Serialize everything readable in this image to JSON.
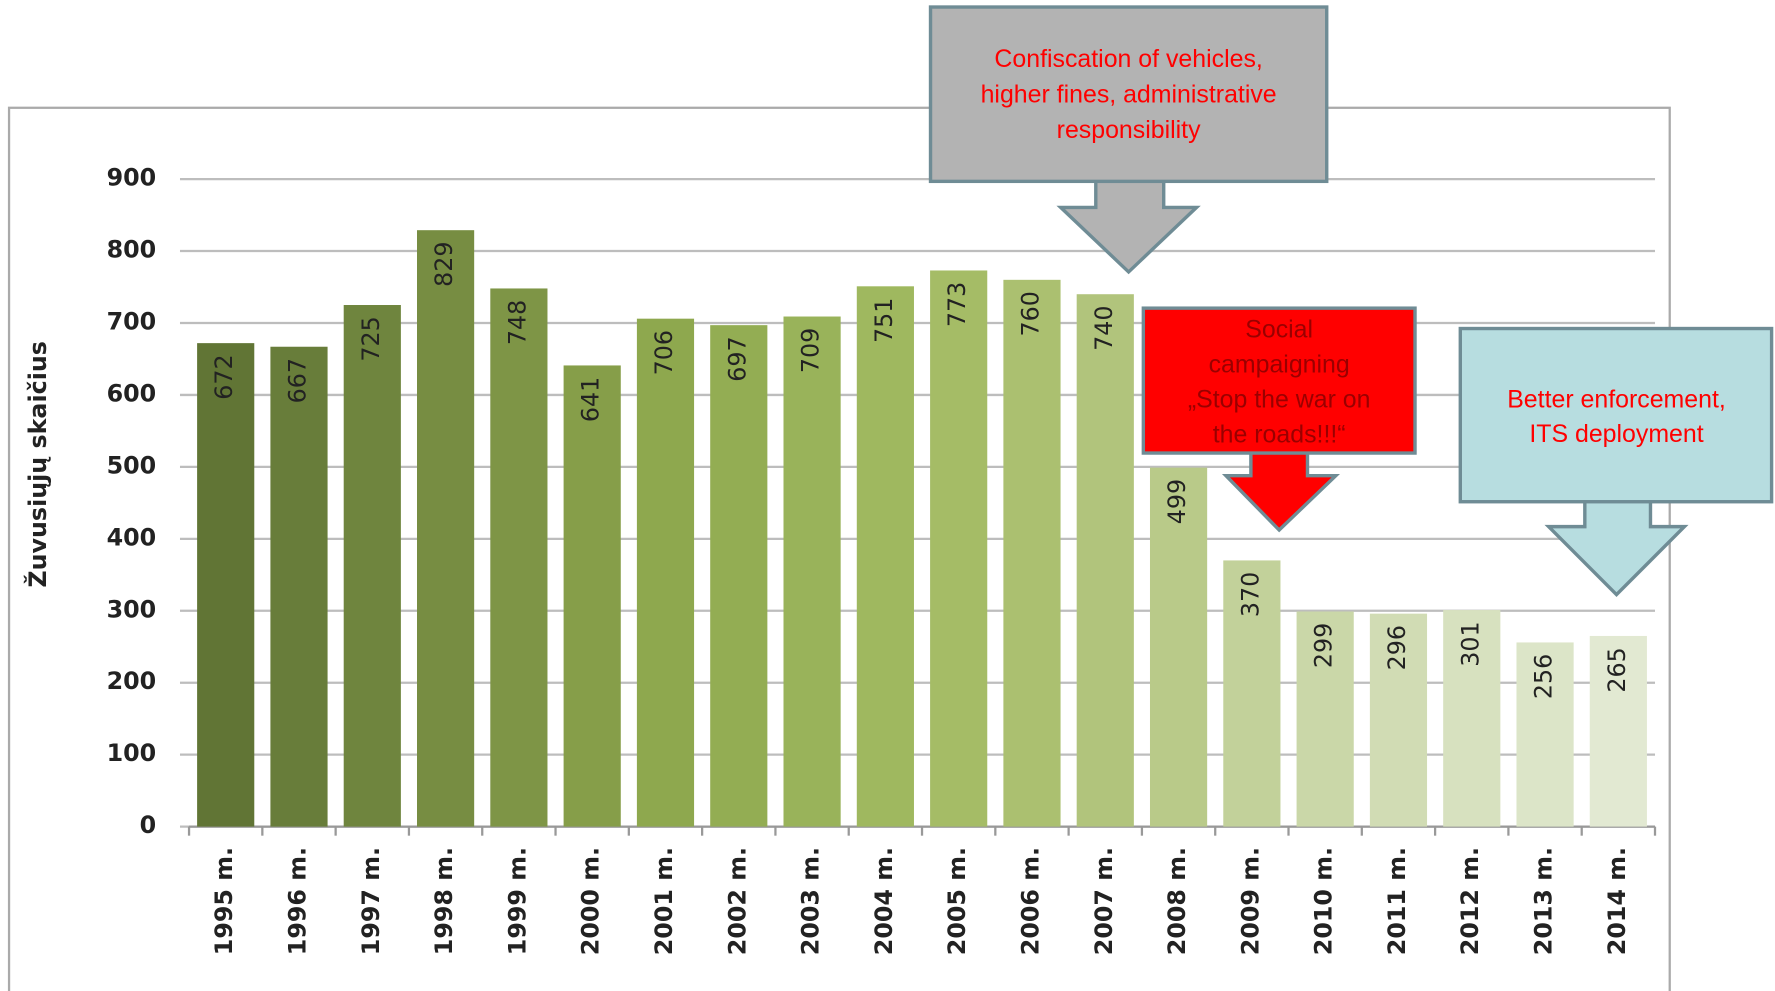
{
  "chart_data": {
    "type": "bar",
    "y_label": "Žuvusiųjų skaičius",
    "categories": [
      "1995 m.",
      "1996 m.",
      "1997 m.",
      "1998 m.",
      "1999 m.",
      "2000 m.",
      "2001 m.",
      "2002 m.",
      "2003 m.",
      "2004 m.",
      "2005 m.",
      "2006 m.",
      "2007 m.",
      "2008 m.",
      "2009 m.",
      "2010 m.",
      "2011 m.",
      "2012 m.",
      "2013 m.",
      "2014 m."
    ],
    "values": [
      672,
      667,
      725,
      829,
      748,
      641,
      706,
      697,
      709,
      751,
      773,
      760,
      740,
      499,
      370,
      299,
      296,
      301,
      256,
      265
    ],
    "colors": [
      "#617535",
      "#687d3a",
      "#6f853e",
      "#778d42",
      "#7e9546",
      "#869e49",
      "#8ea84e",
      "#93ad53",
      "#99b35a",
      "#9fb85f",
      "#a5bc66",
      "#abc070",
      "#b1c47c",
      "#b9ca89",
      "#c2d19a",
      "#cad7a8",
      "#d1dcb4",
      "#d7e1bf",
      "#dce5c8",
      "#e2e9d2"
    ],
    "ylim": [
      0,
      900
    ],
    "yticks": [
      0,
      100,
      200,
      300,
      400,
      500,
      600,
      700,
      800,
      900
    ],
    "grid": true,
    "annotations": [
      {
        "lines": [
          "Confiscation of vehicles,",
          "higher fines, administrative",
          "responsibility"
        ],
        "fill": "#b3b3b3",
        "text_color": "#ff0000"
      },
      {
        "lines": [
          "Social",
          "campaigning",
          "„Stop the war on",
          "the roads!!!“"
        ],
        "fill": "#ff0000",
        "text_color": "#9a0000"
      },
      {
        "lines": [
          "Better enforcement,",
          "ITS deployment"
        ],
        "fill": "#b7dde0",
        "text_color": "#ff0000"
      }
    ]
  }
}
